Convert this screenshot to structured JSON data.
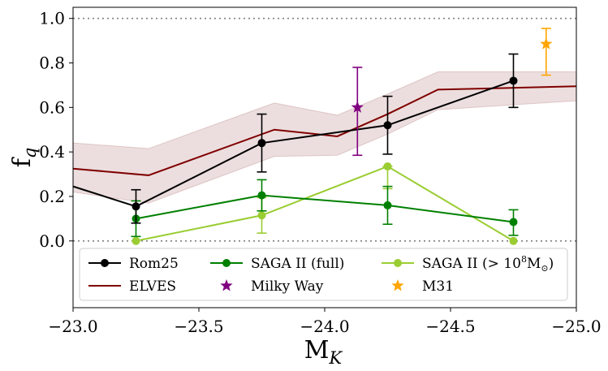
{
  "chart_data": {
    "type": "line",
    "xlabel_main": "M",
    "xlabel_sub": "K",
    "ylabel_main": "f",
    "ylabel_sub": "q",
    "xlim": [
      -23.0,
      -25.0
    ],
    "ylim": [
      -0.3,
      1.05
    ],
    "xticks": [
      -23.0,
      -23.5,
      -24.0,
      -24.5,
      -25.0
    ],
    "xtick_labels": [
      "−23.0",
      "−23.5",
      "−24.0",
      "−24.5",
      "−25.0"
    ],
    "yticks": [
      0.0,
      0.2,
      0.4,
      0.6,
      0.8,
      1.0
    ],
    "ytick_labels": [
      "0.0",
      "0.2",
      "0.4",
      "0.6",
      "0.8",
      "1.0"
    ],
    "reference_lines": [
      0.0,
      1.0
    ],
    "elves": {
      "name": "ELVES",
      "color": "#800000",
      "band_color": "#c9a0a0",
      "x": [
        -23.0,
        -23.3,
        -23.8,
        -24.05,
        -24.25,
        -24.45,
        -25.0
      ],
      "y": [
        0.325,
        0.295,
        0.5,
        0.47,
        0.57,
        0.68,
        0.695
      ],
      "lower": [
        0.22,
        0.17,
        0.38,
        0.385,
        0.48,
        0.59,
        0.63
      ],
      "upper": [
        0.44,
        0.415,
        0.62,
        0.565,
        0.66,
        0.76,
        0.76
      ]
    },
    "series": [
      {
        "name": "Rom25",
        "color": "#000000",
        "marker": "circle",
        "x": [
          -23.0,
          -23.25,
          -23.75,
          -24.25,
          -24.75
        ],
        "y": [
          0.245,
          0.155,
          0.44,
          0.52,
          0.72
        ],
        "err_low": [
          null,
          0.075,
          0.13,
          0.13,
          0.12
        ],
        "err_high": [
          null,
          0.075,
          0.13,
          0.13,
          0.12
        ]
      },
      {
        "name": "SAGA II (full)",
        "color": "#008000",
        "marker": "circle",
        "x": [
          -23.25,
          -23.75,
          -24.25,
          -24.75
        ],
        "y": [
          0.1,
          0.205,
          0.16,
          0.085
        ],
        "err_low": [
          0.08,
          0.07,
          0.085,
          0.06
        ],
        "err_high": [
          0.08,
          0.07,
          0.085,
          0.055
        ]
      },
      {
        "name": "SAGA II (> 10⁸M☉)",
        "name_prefix": "SAGA II (> 10",
        "name_exp": "8",
        "name_suffix": "M",
        "name_sun": "⊙",
        "name_close": ")",
        "color": "#9acd32",
        "marker": "circle",
        "x": [
          -23.25,
          -23.75,
          -24.25,
          -24.75
        ],
        "y": [
          0.0,
          0.115,
          0.335,
          0.0
        ],
        "err_low": [
          0.0,
          0.08,
          0.1,
          0.0
        ],
        "err_high": [
          0.0,
          0.08,
          0.0,
          0.0
        ]
      }
    ],
    "points": [
      {
        "name": "Milky Way",
        "color": "#800080",
        "marker": "star",
        "x": -24.13,
        "y": 0.6,
        "err_low": 0.215,
        "err_high": 0.18
      },
      {
        "name": "M31",
        "color": "#ffa500",
        "marker": "star",
        "x": -24.88,
        "y": 0.885,
        "err_low": 0.14,
        "err_high": 0.07
      }
    ],
    "legend": {
      "placement": "lower-center",
      "entries": [
        "Rom25",
        "SAGA II (full)",
        "SAGA II (> 10⁸M☉)",
        "ELVES",
        "Milky Way",
        "M31"
      ]
    }
  }
}
